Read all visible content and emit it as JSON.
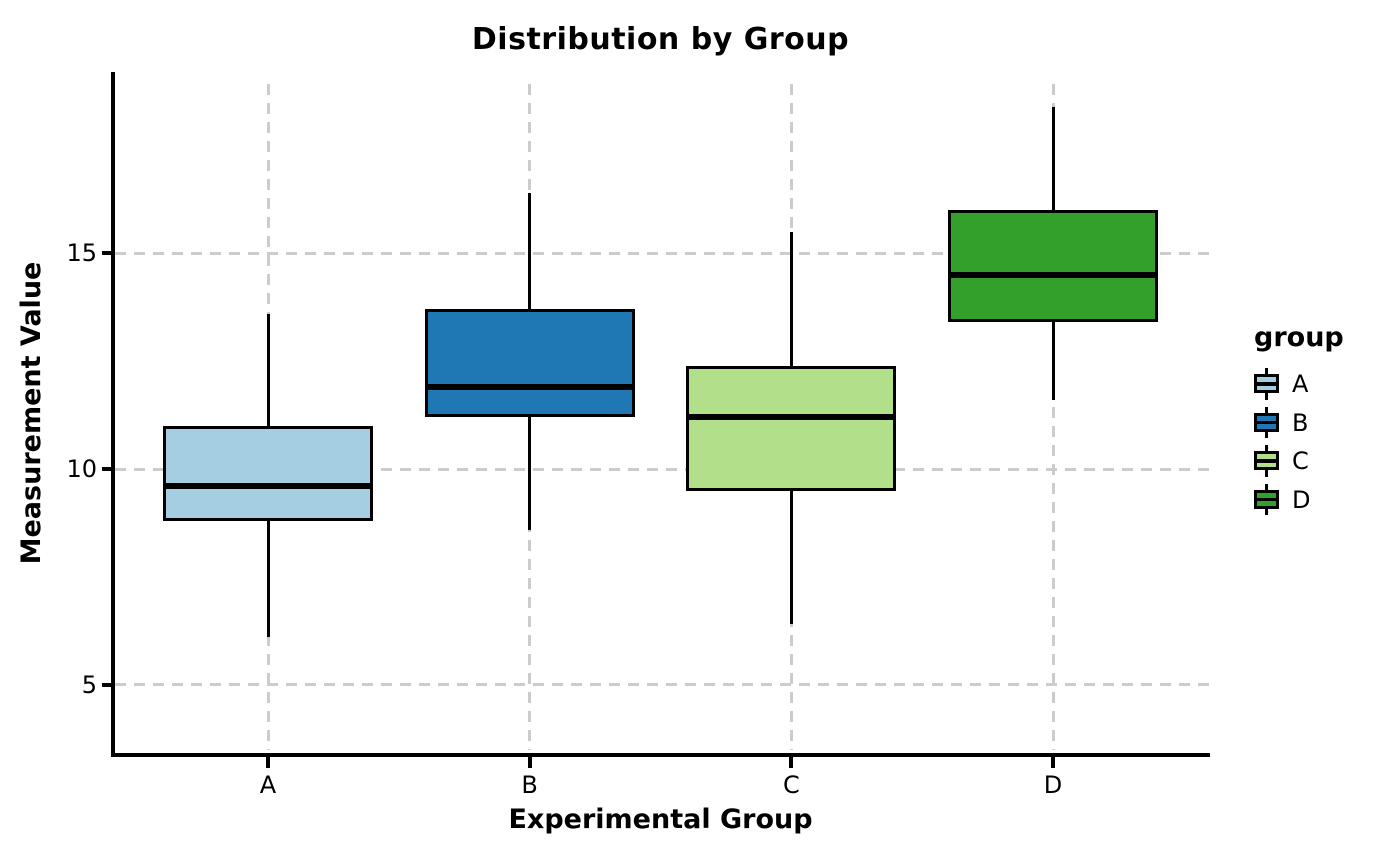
{
  "chart_data": {
    "type": "boxplot",
    "title": "Distribution by Group",
    "xlabel": "Experimental Group",
    "ylabel": "Measurement Value",
    "categories": [
      "A",
      "B",
      "C",
      "D"
    ],
    "yticks": [
      15,
      10,
      5
    ],
    "ylim": [
      3.4,
      19.2
    ],
    "grid": "major gridlines only, light gray dashed; horizontal at yticks, vertical at each category center",
    "legend": {
      "title": "group",
      "position": "right",
      "entries": [
        {
          "label": "A",
          "color": "#a6cee3"
        },
        {
          "label": "B",
          "color": "#1f78b4"
        },
        {
          "label": "C",
          "color": "#b2df8a"
        },
        {
          "label": "D",
          "color": "#33a02c"
        }
      ]
    },
    "series": [
      {
        "name": "A",
        "color": "#a6cee3",
        "whisker_low": 6.1,
        "q1": 8.8,
        "median": 9.6,
        "q3": 11.0,
        "whisker_high": 13.6
      },
      {
        "name": "B",
        "color": "#1f78b4",
        "whisker_low": 8.6,
        "q1": 11.2,
        "median": 11.9,
        "q3": 13.7,
        "whisker_high": 16.4
      },
      {
        "name": "C",
        "color": "#b2df8a",
        "whisker_low": 6.4,
        "q1": 9.5,
        "median": 11.2,
        "q3": 12.4,
        "whisker_high": 15.5
      },
      {
        "name": "D",
        "color": "#33a02c",
        "whisker_low": 11.6,
        "q1": 13.4,
        "median": 14.5,
        "q3": 16.0,
        "whisker_high": 18.4
      }
    ],
    "colors": {
      "axis": "#000000",
      "grid": "#cccccc",
      "text": "#000000"
    }
  }
}
